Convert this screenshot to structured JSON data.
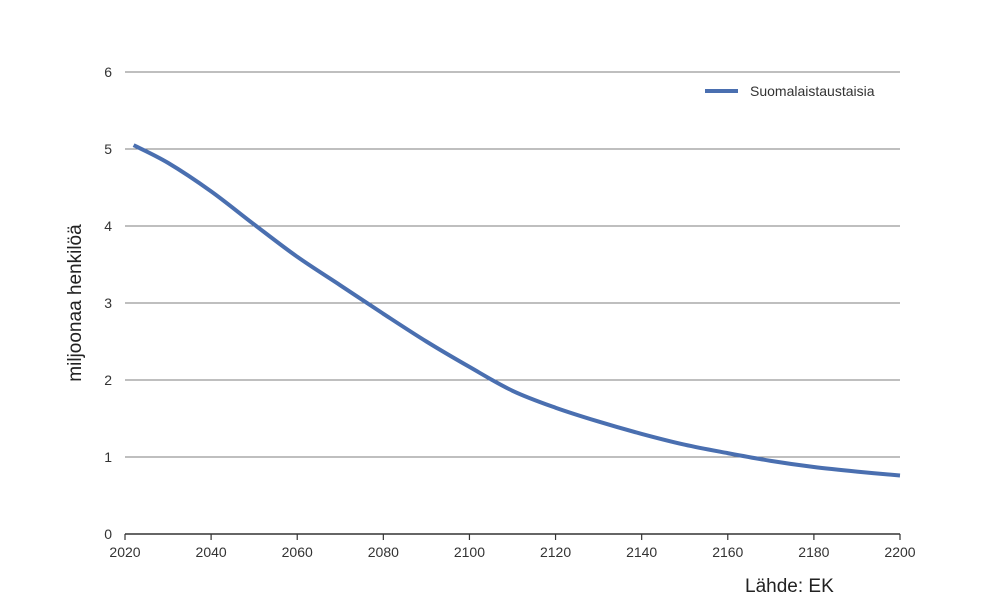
{
  "chart_data": {
    "type": "line",
    "title": "",
    "xlabel": "",
    "ylabel": "miljoonaa henkilöä",
    "xlim": [
      2020,
      2200
    ],
    "ylim": [
      0,
      6
    ],
    "x_ticks": [
      "2020",
      "2040",
      "2060",
      "2080",
      "2100",
      "2120",
      "2140",
      "2160",
      "2180",
      "2200"
    ],
    "y_ticks": [
      "0",
      "1",
      "2",
      "3",
      "4",
      "5",
      "6"
    ],
    "grid": "horizontal",
    "legend_position": "top-right",
    "series": [
      {
        "name": "Suomalaistaustaisia",
        "color": "#4a6fb0",
        "x": [
          2022,
          2030,
          2040,
          2050,
          2060,
          2070,
          2080,
          2090,
          2100,
          2110,
          2120,
          2130,
          2140,
          2150,
          2160,
          2170,
          2180,
          2190,
          2200
        ],
        "values": [
          5.05,
          4.82,
          4.45,
          4.02,
          3.6,
          3.23,
          2.86,
          2.5,
          2.17,
          1.86,
          1.64,
          1.46,
          1.3,
          1.16,
          1.05,
          0.95,
          0.87,
          0.81,
          0.76
        ]
      }
    ]
  },
  "source": "Lähde: EK"
}
